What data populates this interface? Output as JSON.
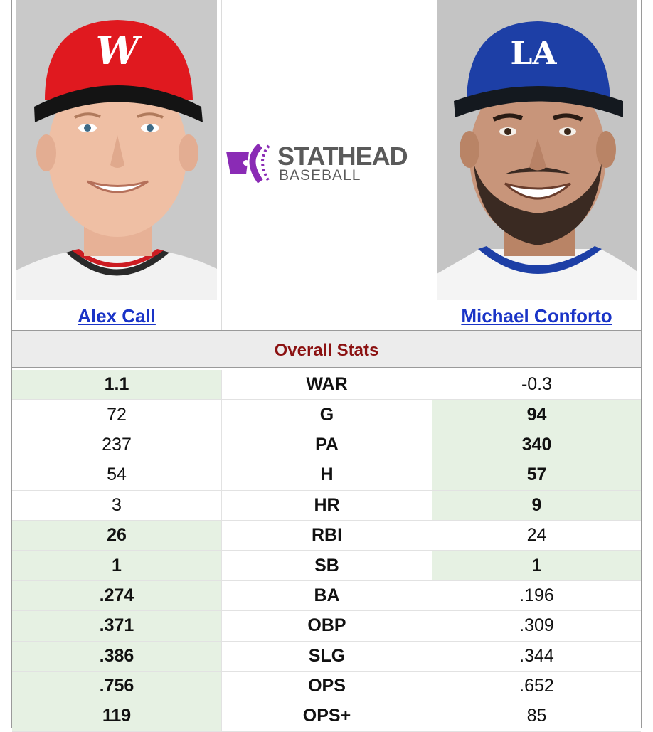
{
  "players": {
    "left": {
      "name": "Alex Call",
      "cap_color": "#e0191f",
      "cap_logo": "W"
    },
    "right": {
      "name": "Michael Conforto",
      "cap_color": "#1d3fa6",
      "cap_logo": "LA"
    }
  },
  "logo": {
    "line1": "STATHEAD",
    "line2": "BASEBALL",
    "accent": "#8a2bb5"
  },
  "section_title": "Overall Stats",
  "colors": {
    "win_bg": "#e6f1e3",
    "title": "#8b1111",
    "link": "#1a34c7"
  },
  "stats": [
    {
      "label": "WAR",
      "left": "1.1",
      "right": "-0.3",
      "winner": "left"
    },
    {
      "label": "G",
      "left": "72",
      "right": "94",
      "winner": "right"
    },
    {
      "label": "PA",
      "left": "237",
      "right": "340",
      "winner": "right"
    },
    {
      "label": "H",
      "left": "54",
      "right": "57",
      "winner": "right"
    },
    {
      "label": "HR",
      "left": "3",
      "right": "9",
      "winner": "right"
    },
    {
      "label": "RBI",
      "left": "26",
      "right": "24",
      "winner": "left"
    },
    {
      "label": "SB",
      "left": "1",
      "right": "1",
      "winner": "both"
    },
    {
      "label": "BA",
      "left": ".274",
      "right": ".196",
      "winner": "left"
    },
    {
      "label": "OBP",
      "left": ".371",
      "right": ".309",
      "winner": "left"
    },
    {
      "label": "SLG",
      "left": ".386",
      "right": ".344",
      "winner": "left"
    },
    {
      "label": "OPS",
      "left": ".756",
      "right": ".652",
      "winner": "left"
    },
    {
      "label": "OPS+",
      "left": "119",
      "right": "85",
      "winner": "left"
    }
  ]
}
